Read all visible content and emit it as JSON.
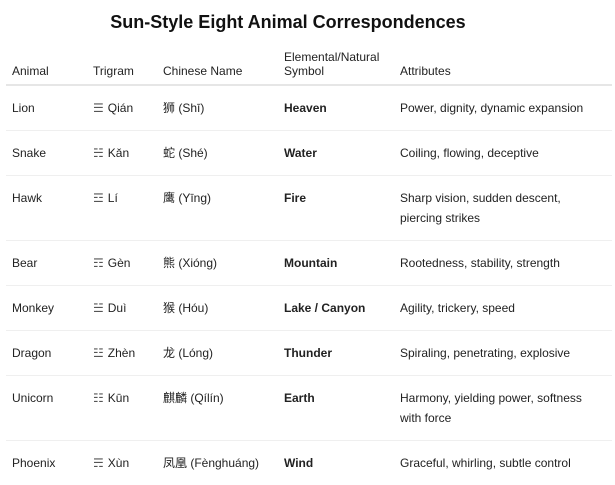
{
  "title": "Sun-Style Eight Animal Correspondences",
  "headers": [
    "Animal",
    "Trigram",
    "Chinese Name",
    "Elemental/Natural Symbol",
    "Attributes"
  ],
  "rows": [
    {
      "animal": "Lion",
      "trigram_symbol": "☰",
      "trigram": "Qián",
      "chinese": "狮 (Shī)",
      "symbol": "Heaven",
      "attributes": "Power, dignity, dynamic expansion"
    },
    {
      "animal": "Snake",
      "trigram_symbol": "☵",
      "trigram": "Kǎn",
      "chinese": "蛇 (Shé)",
      "symbol": "Water",
      "attributes": "Coiling, flowing, deceptive"
    },
    {
      "animal": "Hawk",
      "trigram_symbol": "☲",
      "trigram": "Lí",
      "chinese": "鹰 (Yīng)",
      "symbol": "Fire",
      "attributes": "Sharp vision, sudden descent, piercing strikes"
    },
    {
      "animal": "Bear",
      "trigram_symbol": "☶",
      "trigram": "Gèn",
      "chinese": "熊 (Xióng)",
      "symbol": "Mountain",
      "attributes": "Rootedness, stability, strength"
    },
    {
      "animal": "Monkey",
      "trigram_symbol": "☱",
      "trigram": "Duì",
      "chinese": "猴 (Hóu)",
      "symbol": "Lake / Canyon",
      "attributes": "Agility, trickery, speed"
    },
    {
      "animal": "Dragon",
      "trigram_symbol": "☳",
      "trigram": "Zhèn",
      "chinese": "龙 (Lóng)",
      "symbol": "Thunder",
      "attributes": "Spiraling, penetrating, explosive"
    },
    {
      "animal": "Unicorn",
      "trigram_symbol": "☷",
      "trigram": "Kūn",
      "chinese": "麒麟 (Qílín)",
      "symbol": "Earth",
      "attributes": "Harmony, yielding power, softness with force"
    },
    {
      "animal": "Phoenix",
      "trigram_symbol": "☴",
      "trigram": "Xùn",
      "chinese": "凤凰 (Fènghuáng)",
      "symbol": "Wind",
      "attributes": "Graceful, whirling, subtle control"
    }
  ]
}
